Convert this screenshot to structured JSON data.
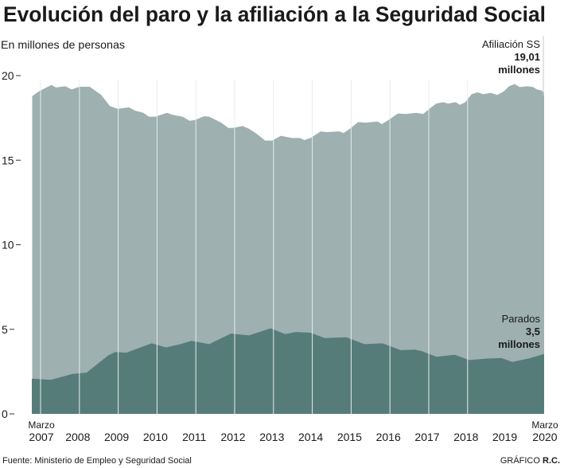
{
  "chart_data": {
    "type": "area",
    "title": "Evolución del paro y la afiliación a la Seguridad Social",
    "subtitle": "En millones de personas",
    "ylim": [
      0,
      20
    ],
    "yticks": [
      "0",
      "5",
      "10",
      "15",
      "20"
    ],
    "xlim": [
      2007.17,
      2020.17
    ],
    "xtick_labels": [
      "2007",
      "2008",
      "2009",
      "2010",
      "2011",
      "2012",
      "2013",
      "2014",
      "2015",
      "2016",
      "2017",
      "2018",
      "2019",
      "2020"
    ],
    "start_label": "Marzo",
    "end_label": "Marzo",
    "grid": false,
    "colors": {
      "afiliacion": "#9eb0b0",
      "parados": "#567c79",
      "separator": "#e6ecec"
    },
    "series": [
      {
        "name": "Afiliación SS",
        "annotation_value": "19,01",
        "annotation_unit": "millones",
        "x": [
          2007.18,
          2007.37,
          2007.67,
          2007.78,
          2008.02,
          2008.18,
          2008.38,
          2008.64,
          2008.93,
          2009.15,
          2009.35,
          2009.63,
          2009.79,
          2010.0,
          2010.14,
          2010.3,
          2010.6,
          2010.74,
          2011.0,
          2011.17,
          2011.31,
          2011.55,
          2011.67,
          2011.95,
          2012.16,
          2012.28,
          2012.52,
          2012.68,
          2012.88,
          2013.09,
          2013.27,
          2013.49,
          2013.77,
          2013.97,
          2014.09,
          2014.24,
          2014.5,
          2014.64,
          2014.98,
          2015.08,
          2015.24,
          2015.45,
          2015.65,
          2015.95,
          2016.05,
          2016.19,
          2016.46,
          2016.66,
          2016.92,
          2017.1,
          2017.26,
          2017.43,
          2017.61,
          2017.73,
          2017.93,
          2018.03,
          2018.17,
          2018.33,
          2018.48,
          2018.62,
          2018.82,
          2018.98,
          2019.14,
          2019.28,
          2019.42,
          2019.55,
          2019.75,
          2019.89,
          2019.99,
          2020.09,
          2020.17
        ],
        "values": [
          18.79,
          19.1,
          19.45,
          19.3,
          19.37,
          19.18,
          19.34,
          19.34,
          18.86,
          18.2,
          18.04,
          18.12,
          17.93,
          17.8,
          17.57,
          17.57,
          17.8,
          17.68,
          17.57,
          17.33,
          17.38,
          17.6,
          17.57,
          17.25,
          16.91,
          16.91,
          17.02,
          16.86,
          16.55,
          16.16,
          16.16,
          16.44,
          16.31,
          16.31,
          16.19,
          16.31,
          16.7,
          16.66,
          16.7,
          16.6,
          16.86,
          17.25,
          17.22,
          17.29,
          17.13,
          17.33,
          17.76,
          17.73,
          17.8,
          17.73,
          18.04,
          18.35,
          18.43,
          18.35,
          18.43,
          18.27,
          18.43,
          18.9,
          19.01,
          18.9,
          18.98,
          18.86,
          19.06,
          19.37,
          19.5,
          19.32,
          19.37,
          19.32,
          19.18,
          19.13,
          19.01
        ]
      },
      {
        "name": "Parados",
        "annotation_value": "3,5",
        "annotation_unit": "millones",
        "x": [
          2007.17,
          2007.65,
          2008.2,
          2008.56,
          2009.11,
          2009.29,
          2009.57,
          2010.21,
          2010.58,
          2010.94,
          2011.22,
          2011.67,
          2012.22,
          2012.68,
          2013.23,
          2013.6,
          2013.87,
          2014.24,
          2014.6,
          2015.15,
          2015.61,
          2016.07,
          2016.53,
          2016.89,
          2017.08,
          2017.44,
          2017.9,
          2018.27,
          2018.72,
          2019.09,
          2019.36,
          2019.82,
          2020.17
        ],
        "values": [
          2.08,
          2.01,
          2.36,
          2.44,
          3.46,
          3.66,
          3.62,
          4.17,
          3.93,
          4.12,
          4.32,
          4.12,
          4.75,
          4.64,
          5.06,
          4.72,
          4.84,
          4.8,
          4.48,
          4.53,
          4.12,
          4.17,
          3.77,
          3.8,
          3.7,
          3.38,
          3.49,
          3.18,
          3.27,
          3.3,
          3.07,
          3.3,
          3.55
        ]
      }
    ],
    "source": "Fuente: Ministerio de Empleo y Seguridad Social",
    "credit_prefix": "GRÁFICO",
    "credit_name": "R.C."
  }
}
